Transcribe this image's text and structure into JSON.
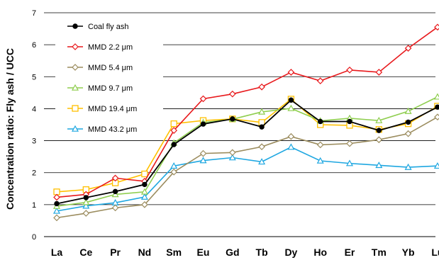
{
  "chart_data": {
    "type": "line",
    "title": "",
    "xlabel": "",
    "ylabel": "Concentration ratio: Fly ash / UCC",
    "ylim": [
      0,
      7
    ],
    "yticks": [
      0,
      1,
      2,
      3,
      4,
      5,
      6,
      7
    ],
    "grid": "horizontal",
    "legend_position": "top-left",
    "categories": [
      "La",
      "Ce",
      "Pr",
      "Nd",
      "Sm",
      "Eu",
      "Gd",
      "Tb",
      "Dy",
      "Ho",
      "Er",
      "Tm",
      "Yb",
      "Lu"
    ],
    "series": [
      {
        "name": "Coal fly ash",
        "color": "#000000",
        "marker": "circle",
        "values": [
          1.03,
          1.22,
          1.41,
          1.63,
          2.88,
          3.52,
          3.68,
          3.43,
          4.27,
          3.6,
          3.6,
          3.32,
          3.58,
          4.05
        ]
      },
      {
        "name": "MMD 2.2 μm",
        "color": "#e8191c",
        "marker": "diamond-open",
        "values": [
          1.23,
          1.32,
          1.83,
          1.73,
          3.32,
          4.31,
          4.46,
          4.68,
          5.14,
          4.87,
          5.21,
          5.14,
          5.89,
          6.55
        ]
      },
      {
        "name": "MMD 5.4 μm",
        "color": "#9b8c5e",
        "marker": "diamond-open",
        "values": [
          0.59,
          0.73,
          0.9,
          1.0,
          2.02,
          2.6,
          2.63,
          2.81,
          3.13,
          2.87,
          2.91,
          3.03,
          3.22,
          3.74
        ]
      },
      {
        "name": "MMD 9.7 μm",
        "color": "#8fce4f",
        "marker": "triangle-open",
        "values": [
          0.95,
          1.07,
          1.32,
          1.4,
          2.93,
          3.57,
          3.67,
          3.9,
          4.01,
          3.62,
          3.7,
          3.63,
          3.92,
          4.37
        ]
      },
      {
        "name": "MMD 19.4 μm",
        "color": "#ffc000",
        "marker": "square-open",
        "values": [
          1.4,
          1.47,
          1.68,
          1.96,
          3.53,
          3.63,
          3.68,
          3.57,
          4.3,
          3.5,
          3.48,
          3.35,
          3.53,
          4.08
        ]
      },
      {
        "name": "MMD 43.2 μm",
        "color": "#1ea7e1",
        "marker": "triangle-open",
        "values": [
          0.8,
          0.96,
          1.06,
          1.24,
          2.21,
          2.38,
          2.47,
          2.34,
          2.8,
          2.37,
          2.29,
          2.23,
          2.17,
          2.21
        ]
      }
    ]
  }
}
